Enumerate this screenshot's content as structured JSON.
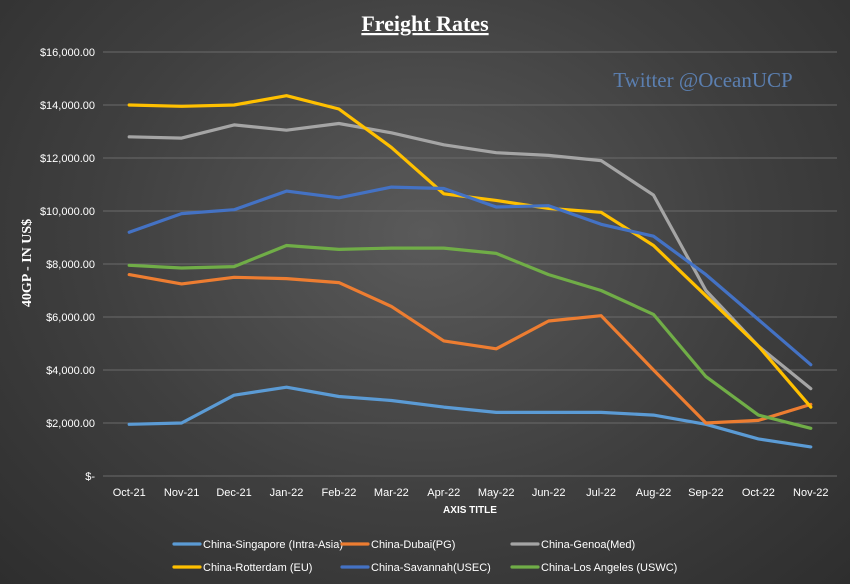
{
  "chart_data": {
    "type": "line",
    "title": "Freight Rates",
    "watermark": "Twitter @OceanUCP",
    "xlabel": "AXIS TITLE",
    "ylabel": "40GP - IN US$",
    "ylim": [
      0,
      16000
    ],
    "yticks": [
      0,
      2000,
      4000,
      6000,
      8000,
      10000,
      12000,
      14000,
      16000
    ],
    "ytick_labels": [
      "$-",
      "$2,000.00",
      "$4,000.00",
      "$6,000.00",
      "$8,000.00",
      "$10,000.00",
      "$12,000.00",
      "$14,000.00",
      "$16,000.00"
    ],
    "grid": true,
    "legend_position": "bottom",
    "categories": [
      "Oct-21",
      "Nov-21",
      "Dec-21",
      "Jan-22",
      "Feb-22",
      "Mar-22",
      "Apr-22",
      "May-22",
      "Jun-22",
      "Jul-22",
      "Aug-22",
      "Sep-22",
      "Oct-22",
      "Nov-22"
    ],
    "series": [
      {
        "name": "China-Singapore (Intra-Asia)",
        "color": "#5b9bd5",
        "values": [
          1950,
          2000,
          3050,
          3350,
          3000,
          2850,
          2600,
          2400,
          2400,
          2400,
          2300,
          1950,
          1400,
          1100
        ]
      },
      {
        "name": "China-Dubai(PG)",
        "color": "#ed7d31",
        "values": [
          7600,
          7250,
          7500,
          7450,
          7300,
          6400,
          5100,
          4800,
          5850,
          6050,
          4000,
          2000,
          2100,
          2700
        ]
      },
      {
        "name": "China-Genoa(Med)",
        "color": "#a5a5a5",
        "values": [
          12800,
          12750,
          13250,
          13050,
          13300,
          12950,
          12500,
          12200,
          12100,
          11900,
          10600,
          7000,
          4900,
          3300
        ]
      },
      {
        "name": "China-Rotterdam (EU)",
        "color": "#ffc000",
        "values": [
          14000,
          13950,
          14000,
          14350,
          13850,
          12400,
          10650,
          10400,
          10100,
          9950,
          8700,
          6800,
          4900,
          2600
        ]
      },
      {
        "name": "China-Savannah(USEC)",
        "color": "#4472c4",
        "values": [
          9200,
          9900,
          10050,
          10750,
          10500,
          10900,
          10850,
          10150,
          10200,
          9500,
          9050,
          7600,
          5900,
          4200
        ]
      },
      {
        "name": "China-Los Angeles (USWC)",
        "color": "#70ad47",
        "values": [
          7950,
          7850,
          7900,
          8700,
          8550,
          8600,
          8600,
          8400,
          7600,
          7000,
          6100,
          3750,
          2300,
          1800
        ]
      }
    ]
  }
}
